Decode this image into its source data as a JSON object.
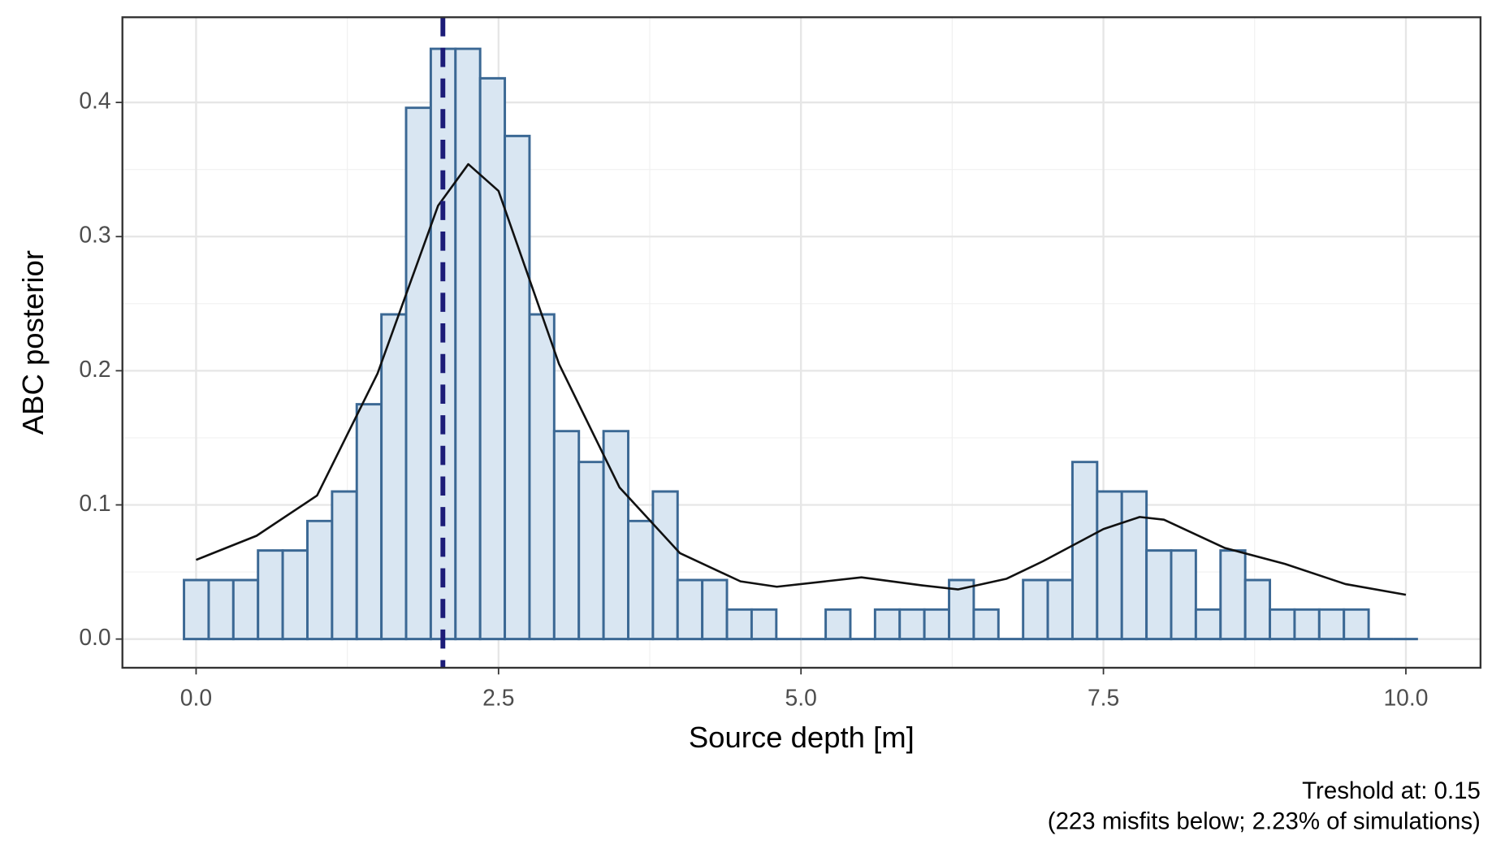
{
  "chart_data": {
    "type": "histogram",
    "x_label": "Source depth [m]",
    "y_label": "ABC posterior",
    "caption": [
      "Treshold at: 0.15",
      "(223 misfits below; 2.23% of simulations)"
    ],
    "bins": [
      -0.1,
      0.104,
      0.308,
      0.512,
      0.716,
      0.92,
      1.124,
      1.328,
      1.532,
      1.736,
      1.94,
      2.144,
      2.348,
      2.552,
      2.756,
      2.96,
      3.164,
      3.368,
      3.572,
      3.776,
      3.98,
      4.184,
      4.388,
      4.592,
      4.796,
      5.0,
      5.204,
      5.408,
      5.612,
      5.816,
      6.02,
      6.224,
      6.428,
      6.632,
      6.836,
      7.04,
      7.244,
      7.448,
      7.652,
      7.856,
      8.06,
      8.264,
      8.468,
      8.672,
      8.876,
      9.08,
      9.284,
      9.488,
      9.692,
      9.896,
      10.1
    ],
    "values": [
      0.044,
      0.044,
      0.044,
      0.066,
      0.066,
      0.088,
      0.11,
      0.175,
      0.242,
      0.396,
      0.44,
      0.44,
      0.418,
      0.375,
      0.242,
      0.155,
      0.132,
      0.155,
      0.088,
      0.11,
      0.044,
      0.044,
      0.022,
      0.022,
      0,
      0,
      0.022,
      0,
      0.022,
      0.022,
      0.022,
      0.044,
      0.022,
      0,
      0.044,
      0.044,
      0.132,
      0.11,
      0.11,
      0.066,
      0.066,
      0.022,
      0.066,
      0.044,
      0.022,
      0.022,
      0.022,
      0.022,
      0,
      0
    ],
    "color": "#d9e6f2",
    "edgecolor": "#3b6894",
    "density": {
      "color": "#111111",
      "x": [
        0,
        0.5,
        1.0,
        1.5,
        2.0,
        2.25,
        2.5,
        3.0,
        3.5,
        4.0,
        4.5,
        4.8,
        5.5,
        6.0,
        6.3,
        6.7,
        7.0,
        7.5,
        7.8,
        8.0,
        8.5,
        9.0,
        9.5,
        10.0
      ],
      "y": [
        0.059,
        0.077,
        0.107,
        0.198,
        0.323,
        0.354,
        0.334,
        0.205,
        0.113,
        0.064,
        0.043,
        0.039,
        0.046,
        0.04,
        0.037,
        0.045,
        0.058,
        0.082,
        0.091,
        0.089,
        0.068,
        0.056,
        0.041,
        0.033
      ]
    },
    "reference_line": {
      "x": 2.04,
      "color": "#1c1c78"
    },
    "xlim": [
      -0.609,
      10.617
    ],
    "ylim": [
      -0.0214,
      0.4635
    ],
    "xticks": [
      {
        "value": 0,
        "label": "0.0"
      },
      2.5,
      {
        "value": 5,
        "label": "5.0"
      },
      7.5,
      {
        "value": 10,
        "label": "10.0"
      }
    ],
    "yticks": [
      {
        "value": 0,
        "label": "0.0"
      },
      0.1,
      0.2,
      0.3,
      0.4
    ],
    "grid": true
  }
}
